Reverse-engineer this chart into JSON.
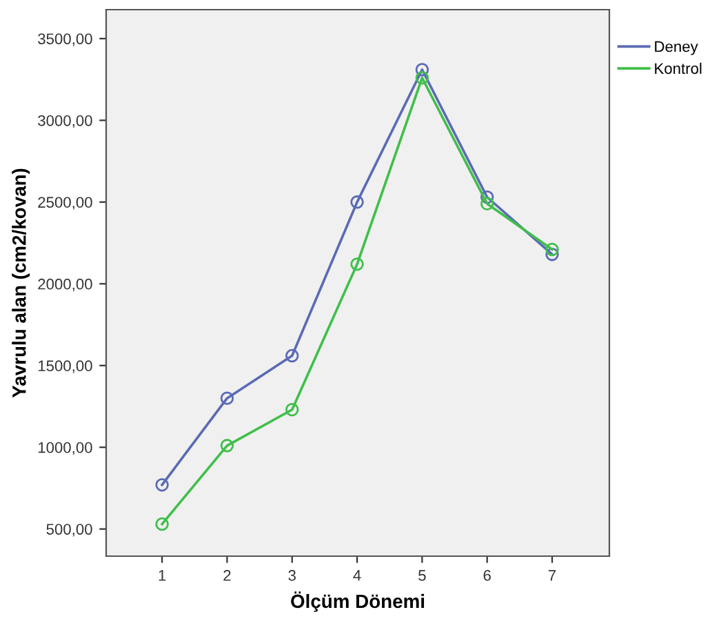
{
  "chart_data": {
    "type": "line",
    "xlabel": "Ölçüm Dönemi",
    "ylabel": "Yavrulu alan (cm2/kovan)",
    "x": [
      1,
      2,
      3,
      4,
      5,
      6,
      7
    ],
    "series": [
      {
        "name": "Deney",
        "color": "#5b6ab5",
        "values": [
          770,
          1300,
          1560,
          2500,
          3310,
          2530,
          2180
        ]
      },
      {
        "name": "Kontrol",
        "color": "#3fbf4a",
        "values": [
          530,
          1010,
          1230,
          2120,
          3260,
          2490,
          2210
        ]
      }
    ],
    "xlim": [
      0.14,
      7.88
    ],
    "xticks": [
      1,
      2,
      3,
      4,
      5,
      6,
      7
    ],
    "ylim": [
      334,
      3677
    ],
    "yticks": [
      {
        "value": 500,
        "label": "500,00"
      },
      {
        "value": 1000,
        "label": "1000,00"
      },
      {
        "value": 1500,
        "label": "1500,00"
      },
      {
        "value": 2000,
        "label": "2000,00"
      },
      {
        "value": 2500,
        "label": "2500,00"
      },
      {
        "value": 3000,
        "label": "3000,00"
      },
      {
        "value": 3500,
        "label": "3500,00"
      }
    ],
    "marker": "circle",
    "line_style": "solid",
    "grid": false,
    "legend": "top right"
  }
}
